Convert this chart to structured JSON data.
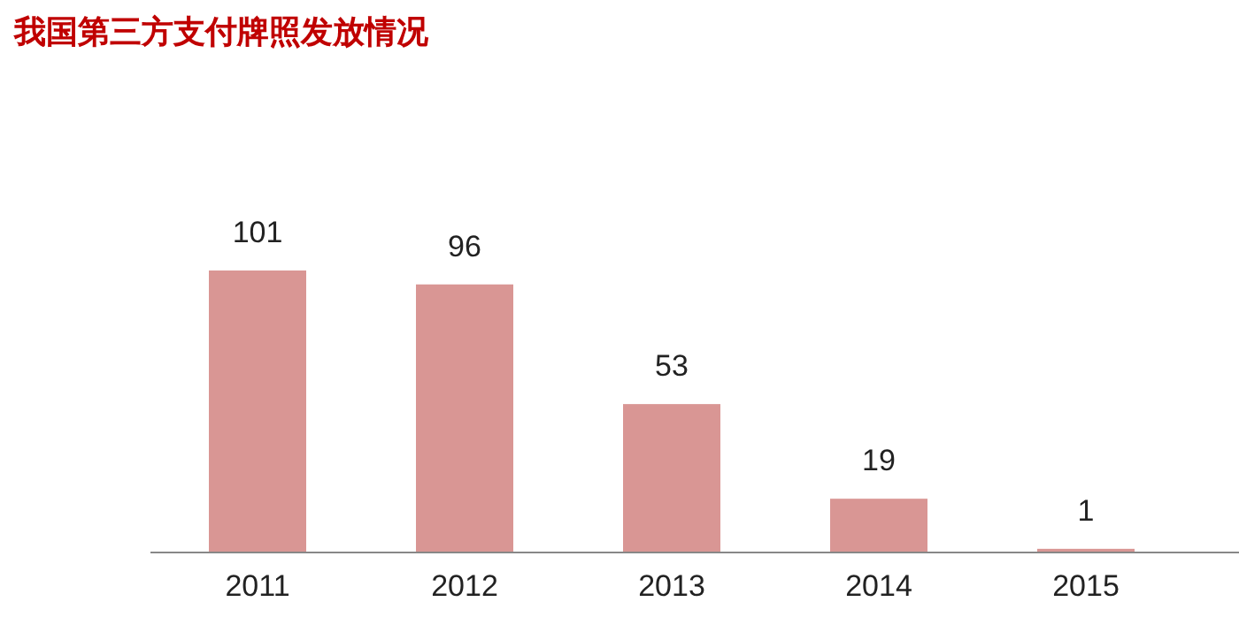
{
  "chart_data": {
    "type": "bar",
    "title": "我国第三方支付牌照发放情况",
    "categories": [
      "2011",
      "2012",
      "2013",
      "2014",
      "2015"
    ],
    "values": [
      101,
      96,
      53,
      19,
      1
    ],
    "color": "#d99694",
    "data_labels": true
  }
}
